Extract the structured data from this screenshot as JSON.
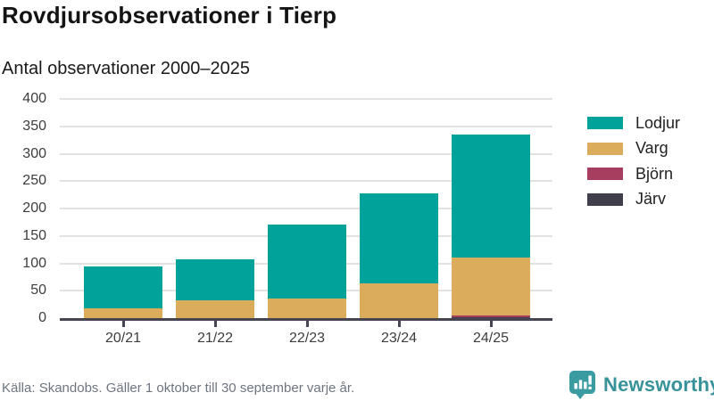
{
  "header": {
    "title": "Rovdjursobservationer i Tierp",
    "subtitle": "Antal observationer 2000–2025"
  },
  "chart_data": {
    "type": "bar",
    "stacked": true,
    "title": "Rovdjursobservationer i Tierp",
    "subtitle": "Antal observationer 2000–2025",
    "categories": [
      "20/21",
      "21/22",
      "22/23",
      "23/24",
      "24/25"
    ],
    "series": [
      {
        "name": "Lodjur",
        "color": "#00a29a",
        "values": [
          77,
          75,
          134,
          164,
          225
        ]
      },
      {
        "name": "Varg",
        "color": "#dbac5c",
        "values": [
          18,
          33,
          36,
          63,
          105
        ]
      },
      {
        "name": "Björn",
        "color": "#a63f5f",
        "values": [
          0,
          0,
          0,
          0,
          3
        ]
      },
      {
        "name": "Järv",
        "color": "#3f3e4a",
        "values": [
          0,
          0,
          0,
          0,
          2
        ]
      }
    ],
    "totals": [
      95,
      108,
      170,
      227,
      335
    ],
    "xlabel": "",
    "ylabel": "",
    "ylim": [
      0,
      400
    ],
    "yticks": [
      0,
      50,
      100,
      150,
      200,
      250,
      300,
      350,
      400
    ],
    "grid": "horizontal",
    "legend_position": "right",
    "axis_color": "#454450",
    "grid_color": "#e2e2e2"
  },
  "footer": {
    "source": "Källa: Skandobs. Gäller 1 oktober till 30 september varje år.",
    "brand": "Newsworthy",
    "brand_color": "#38929a",
    "brand_icon": "speech-bubble-bar-chart-icon"
  }
}
